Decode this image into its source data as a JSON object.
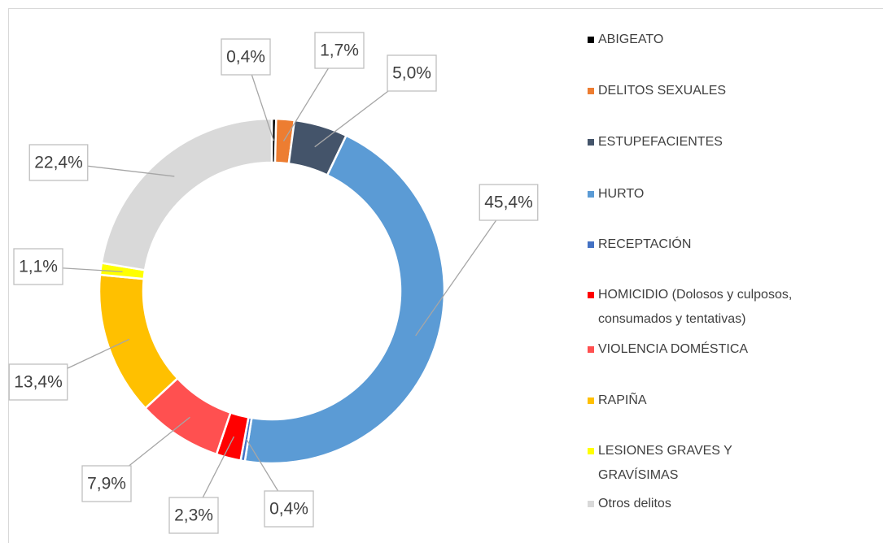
{
  "chart_data": {
    "type": "doughnut",
    "categories": [
      "ABIGEATO",
      "DELITOS SEXUALES",
      "ESTUPEFACIENTES",
      "HURTO",
      "RECEPTACIÓN",
      "HOMICIDIO (Dolosos y culposos, consumados y tentativas)",
      "VIOLENCIA DOMÉSTICA",
      "RAPIÑA",
      "LESIONES GRAVES Y GRAVÍSIMAS",
      "Otros delitos"
    ],
    "values": [
      0.4,
      1.7,
      5.0,
      45.4,
      0.4,
      2.3,
      7.9,
      13.4,
      1.1,
      22.4
    ],
    "value_labels": [
      "0,4%",
      "1,7%",
      "5,0%",
      "45,4%",
      "0,4%",
      "2,3%",
      "7,9%",
      "13,4%",
      "1,1%",
      "22,4%"
    ],
    "colors": [
      "#000000",
      "#ED7D31",
      "#44546A",
      "#5B9BD5",
      "#4472C4",
      "#FF0000",
      "#FF5050",
      "#FFC000",
      "#FFFF00",
      "#D9D9D9"
    ],
    "legend": "right"
  }
}
